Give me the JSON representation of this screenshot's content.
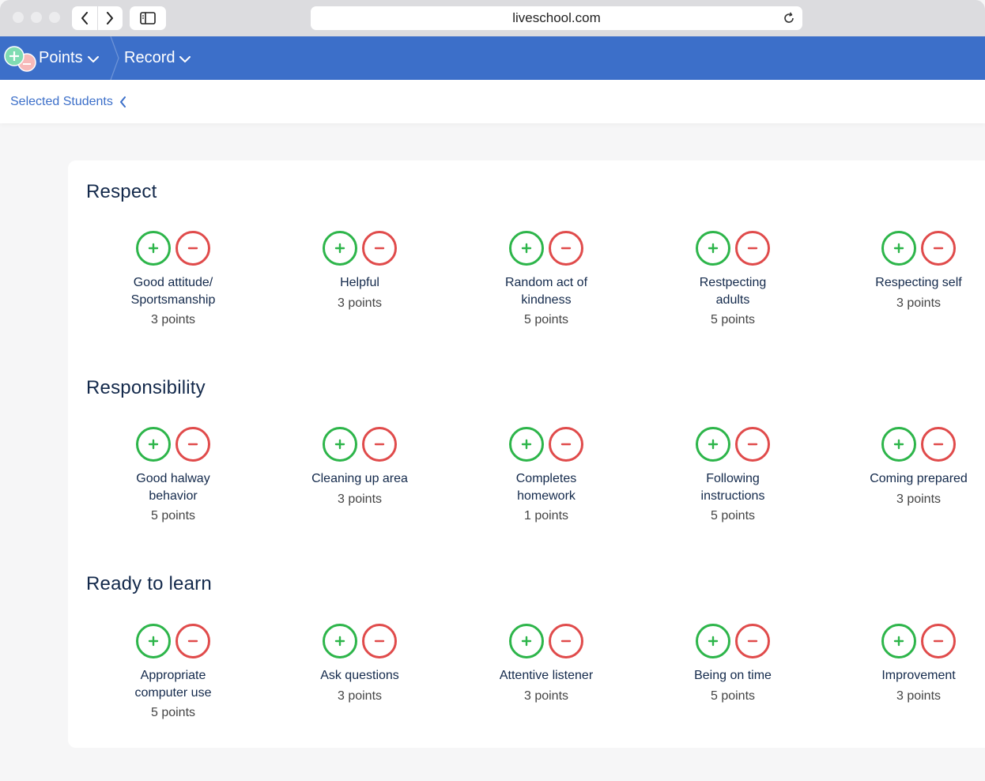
{
  "browser": {
    "url": "liveschool.com"
  },
  "header": {
    "menus": [
      {
        "label": "Points"
      },
      {
        "label": "Record"
      }
    ]
  },
  "subheader": {
    "label": "Selected Students"
  },
  "sections": [
    {
      "title": "Respect",
      "behaviors": [
        {
          "name": "Good attitude/ Sportsmanship",
          "points": "3 points"
        },
        {
          "name": "Helpful",
          "points": "3 points"
        },
        {
          "name": "Random act of kindness",
          "points": "5 points"
        },
        {
          "name": "Restpecting adults",
          "points": "5 points"
        },
        {
          "name": "Respecting self",
          "points": "3 points"
        }
      ]
    },
    {
      "title": "Responsibility",
      "behaviors": [
        {
          "name": "Good halway behavior",
          "points": "5 points"
        },
        {
          "name": "Cleaning up area",
          "points": "3 points"
        },
        {
          "name": "Completes homework",
          "points": "1 points"
        },
        {
          "name": "Following instructions",
          "points": "5 points"
        },
        {
          "name": "Coming prepared",
          "points": "3 points"
        }
      ]
    },
    {
      "title": "Ready to learn",
      "behaviors": [
        {
          "name": "Appropriate computer use",
          "points": "5 points"
        },
        {
          "name": "Ask questions",
          "points": "3 points"
        },
        {
          "name": "Attentive listener",
          "points": "3 points"
        },
        {
          "name": "Being on time",
          "points": "5 points"
        },
        {
          "name": "Improvement",
          "points": "3 points"
        }
      ]
    }
  ],
  "colors": {
    "header": "#3c6fc9",
    "plus": "#2db54a",
    "minus": "#e04b4b",
    "title": "#13294b"
  }
}
